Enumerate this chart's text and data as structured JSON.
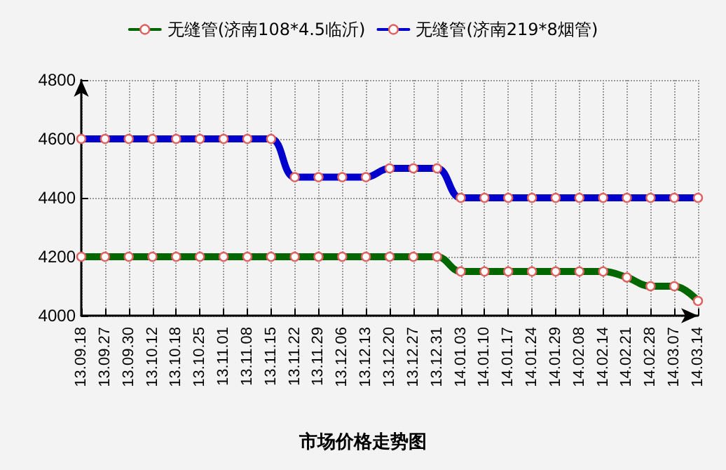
{
  "chart_data": {
    "type": "line",
    "title": "市场价格走势图",
    "categories": [
      "13.09.18",
      "13.09.27",
      "13.09.30",
      "13.10.12",
      "13.10.18",
      "13.10.25",
      "13.11.01",
      "13.11.08",
      "13.11.15",
      "13.11.22",
      "13.11.29",
      "13.12.06",
      "13.12.13",
      "13.12.20",
      "13.12.27",
      "13.12.31",
      "14.01.03",
      "14.01.10",
      "14.01.17",
      "14.01.24",
      "14.01.29",
      "14.02.08",
      "14.02.14",
      "14.02.21",
      "14.02.28",
      "14.03.07",
      "14.03.14"
    ],
    "series": [
      {
        "name": "无缝管(济南108*4.5临沂)",
        "color": "#006600",
        "values": [
          4200,
          4200,
          4200,
          4200,
          4200,
          4200,
          4200,
          4200,
          4200,
          4200,
          4200,
          4200,
          4200,
          4200,
          4200,
          4200,
          4150,
          4150,
          4150,
          4150,
          4150,
          4150,
          4150,
          4130,
          4100,
          4100,
          4050
        ]
      },
      {
        "name": "无缝管(济南219*8烟管)",
        "color": "#0000cc",
        "values": [
          4600,
          4600,
          4600,
          4600,
          4600,
          4600,
          4600,
          4600,
          4600,
          4470,
          4470,
          4470,
          4470,
          4500,
          4500,
          4500,
          4400,
          4400,
          4400,
          4400,
          4400,
          4400,
          4400,
          4400,
          4400,
          4400,
          4400
        ]
      }
    ],
    "ylim": [
      4000,
      4800
    ],
    "yticks": [
      4000,
      4200,
      4400,
      4600,
      4800
    ],
    "grid": true,
    "legend": "top",
    "marker": "circle",
    "line_style": "solid"
  }
}
